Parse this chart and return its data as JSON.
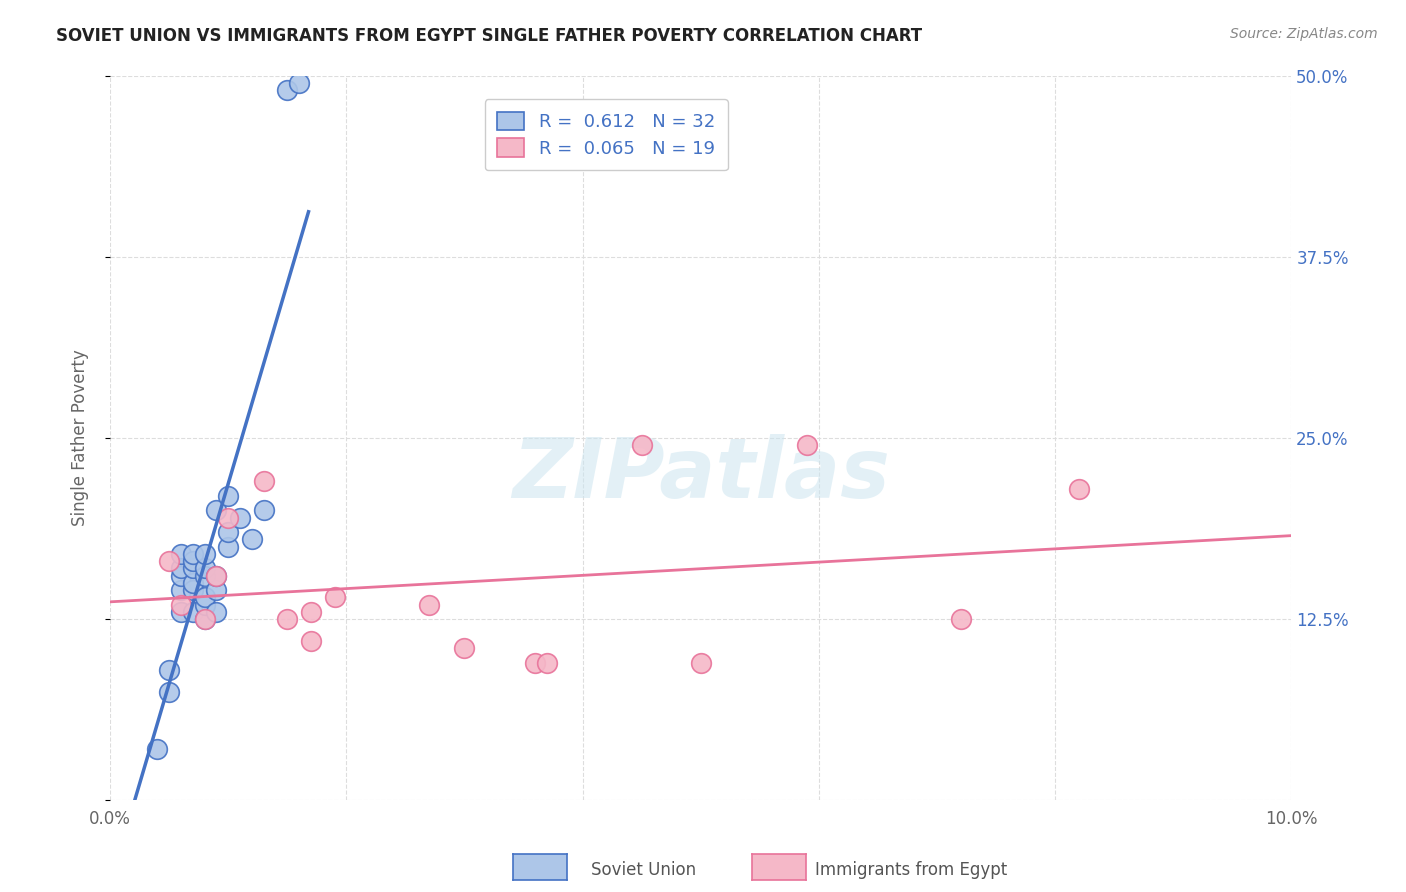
{
  "title": "SOVIET UNION VS IMMIGRANTS FROM EGYPT SINGLE FATHER POVERTY CORRELATION CHART",
  "source": "Source: ZipAtlas.com",
  "ylabel": "Single Father Poverty",
  "xlim": [
    0.0,
    0.1
  ],
  "ylim": [
    0.0,
    0.5
  ],
  "xticks": [
    0.0,
    0.02,
    0.04,
    0.06,
    0.08,
    0.1
  ],
  "xtick_labels": [
    "0.0%",
    "",
    "",
    "",
    "",
    "10.0%"
  ],
  "yticks": [
    0.0,
    0.125,
    0.25,
    0.375,
    0.5
  ],
  "ytick_labels_right": [
    "",
    "12.5%",
    "25.0%",
    "37.5%",
    "50.0%"
  ],
  "soviet_R": 0.612,
  "soviet_N": 32,
  "egypt_R": 0.065,
  "egypt_N": 19,
  "soviet_color": "#adc6e8",
  "egypt_color": "#f5b8c8",
  "soviet_line_color": "#4472c4",
  "egypt_line_color": "#e8739a",
  "tick_color": "#4472c4",
  "watermark_text": "ZIPatlas",
  "soviet_x": [
    0.004,
    0.005,
    0.005,
    0.006,
    0.006,
    0.006,
    0.006,
    0.006,
    0.007,
    0.007,
    0.007,
    0.007,
    0.007,
    0.007,
    0.008,
    0.008,
    0.008,
    0.008,
    0.008,
    0.008,
    0.009,
    0.009,
    0.009,
    0.009,
    0.01,
    0.01,
    0.01,
    0.011,
    0.012,
    0.013,
    0.015,
    0.016
  ],
  "soviet_y": [
    0.035,
    0.075,
    0.09,
    0.13,
    0.145,
    0.155,
    0.16,
    0.17,
    0.13,
    0.145,
    0.15,
    0.16,
    0.165,
    0.17,
    0.125,
    0.135,
    0.14,
    0.155,
    0.16,
    0.17,
    0.13,
    0.145,
    0.155,
    0.2,
    0.175,
    0.185,
    0.21,
    0.195,
    0.18,
    0.2,
    0.49,
    0.495
  ],
  "egypt_x": [
    0.005,
    0.006,
    0.008,
    0.009,
    0.01,
    0.013,
    0.015,
    0.017,
    0.017,
    0.019,
    0.027,
    0.03,
    0.036,
    0.037,
    0.045,
    0.05,
    0.059,
    0.072,
    0.082
  ],
  "egypt_y": [
    0.165,
    0.135,
    0.125,
    0.155,
    0.195,
    0.22,
    0.125,
    0.11,
    0.13,
    0.14,
    0.135,
    0.105,
    0.095,
    0.095,
    0.245,
    0.095,
    0.245,
    0.125,
    0.215
  ],
  "background_color": "#ffffff",
  "grid_color": "#dddddd"
}
